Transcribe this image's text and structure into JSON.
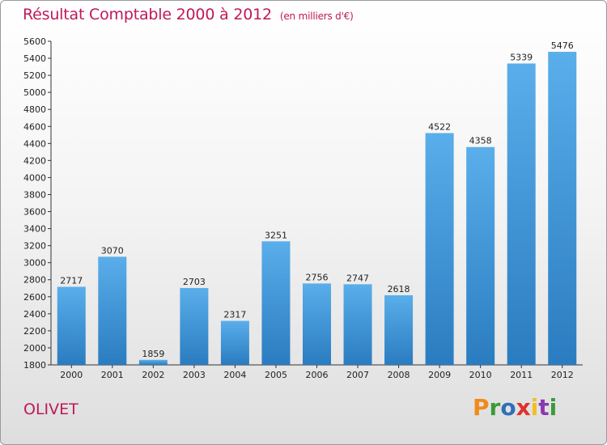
{
  "header": {
    "title": "Résultat Comptable 2000 à 2012",
    "subtitle": "(en milliers d'€)"
  },
  "footer": {
    "city": "OLIVET",
    "logo_text": "Proxiti"
  },
  "colors": {
    "title": "#c0185a",
    "bar_top": "#5aaeea",
    "bar_bottom": "#2a7cc0",
    "logo": [
      "#f08a1c",
      "#3a9a3a",
      "#2f6fb8",
      "#e0312b",
      "#f0c020",
      "#8a3ab0",
      "#3a9a3a"
    ]
  },
  "chart_data": {
    "type": "bar",
    "categories": [
      "2000",
      "2001",
      "2002",
      "2003",
      "2004",
      "2005",
      "2006",
      "2007",
      "2008",
      "2009",
      "2010",
      "2011",
      "2012"
    ],
    "values": [
      2717,
      3070,
      1859,
      2703,
      2317,
      3251,
      2756,
      2747,
      2618,
      4522,
      4358,
      5339,
      5476
    ],
    "title": "Résultat Comptable 2000 à 2012",
    "subtitle": "(en milliers d'€)",
    "ylim": [
      1800,
      5600
    ],
    "yticks": [
      1800,
      2000,
      2200,
      2400,
      2600,
      2800,
      3000,
      3200,
      3400,
      3600,
      3800,
      4000,
      4200,
      4400,
      4600,
      4800,
      5000,
      5200,
      5400,
      5600
    ],
    "grid": false,
    "data_labels": true
  }
}
